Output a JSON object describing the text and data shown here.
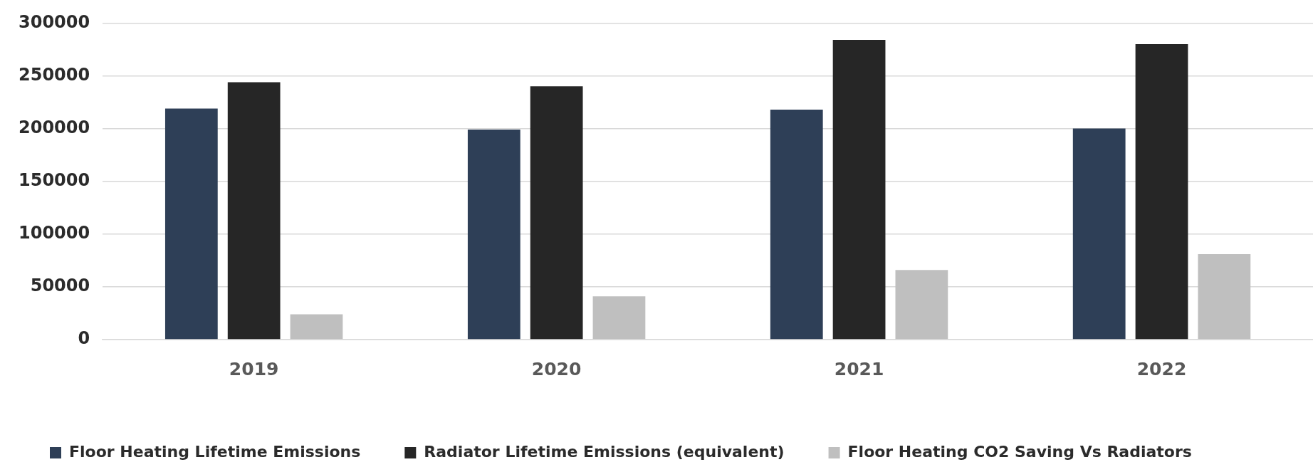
{
  "chart_data": {
    "type": "bar",
    "categories": [
      "2019",
      "2020",
      "2021",
      "2022"
    ],
    "series": [
      {
        "name": "Floor Heating Lifetime Emissions",
        "color": "#2e3f57",
        "values": [
          219000,
          199000,
          218000,
          200000
        ]
      },
      {
        "name": "Radiator Lifetime Emissions (equivalent)",
        "color": "#262626",
        "values": [
          244000,
          240000,
          284000,
          280000
        ]
      },
      {
        "name": "Floor Heating CO2 Saving Vs Radiators",
        "color": "#bfbfbf",
        "values": [
          24000,
          41000,
          66000,
          81000
        ]
      }
    ],
    "ylim": [
      0,
      300000
    ],
    "yticks": [
      0,
      50000,
      100000,
      150000,
      200000,
      250000,
      300000
    ],
    "grid": "y",
    "legend": "bottom"
  }
}
